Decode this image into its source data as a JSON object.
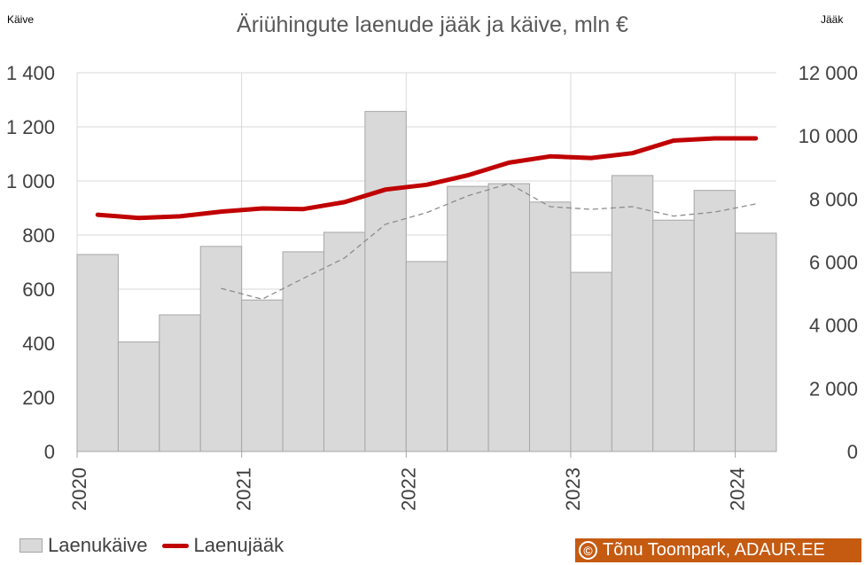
{
  "left_axis_name": "Käive",
  "right_axis_name": "Jääk",
  "credit": {
    "symbol": "©",
    "text": "Tõnu Toompark, ADAUR.EE",
    "color": "#c55a11"
  },
  "colors": {
    "bar": "#d9d9d9",
    "bar_edge": "#a6a6a6",
    "balance_line": "#c00000",
    "trend_line": "#8c8c8c",
    "grid": "#d9d9d9"
  },
  "chart_data": {
    "type": "bar",
    "title": "Äriühingute laenude jääk ja käive, mln €",
    "xlabel": "",
    "ylabel": "Käive",
    "y2label": "Jääk",
    "x_tick_labels": [
      "2020",
      "2021",
      "2022",
      "2023",
      "2024"
    ],
    "categories": [
      "2020 Q1",
      "2020 Q2",
      "2020 Q3",
      "2020 Q4",
      "2021 Q1",
      "2021 Q2",
      "2021 Q3",
      "2021 Q4",
      "2022 Q1",
      "2022 Q2",
      "2022 Q3",
      "2022 Q4",
      "2023 Q1",
      "2023 Q2",
      "2023 Q3",
      "2023 Q4",
      "2024 Q1"
    ],
    "ylim": [
      0,
      1400
    ],
    "yticks": [
      "0",
      "200",
      "400",
      "600",
      "800",
      "1 000",
      "1 200",
      "1 400"
    ],
    "y2lim": [
      0,
      12000
    ],
    "y2ticks": [
      "0",
      "2 000",
      "4 000",
      "6 000",
      "8 000",
      "10 000",
      "12 000"
    ],
    "grid": true,
    "legend_position": "bottom-left",
    "series": [
      {
        "name": "Laenukäive",
        "type": "bar",
        "axis": "left",
        "values": [
          728,
          405,
          505,
          758,
          560,
          738,
          810,
          1257,
          702,
          980,
          990,
          922,
          662,
          1020,
          855,
          965,
          807
        ]
      },
      {
        "type": "line",
        "style": "dashed",
        "axis": "left",
        "values": [
          null,
          null,
          null,
          603,
          563,
          640,
          715,
          840,
          883,
          945,
          990,
          905,
          895,
          905,
          870,
          885,
          915
        ]
      },
      {
        "name": "Laenujääk",
        "type": "line",
        "axis": "right",
        "values": [
          7500,
          7400,
          7450,
          7600,
          7700,
          7680,
          7900,
          8300,
          8450,
          8750,
          9150,
          9350,
          9300,
          9450,
          9850,
          9920,
          9920
        ]
      }
    ]
  },
  "legend": [
    {
      "label": "Laenukäive",
      "kind": "bar"
    },
    {
      "label": "Laenujääk",
      "kind": "line"
    }
  ]
}
